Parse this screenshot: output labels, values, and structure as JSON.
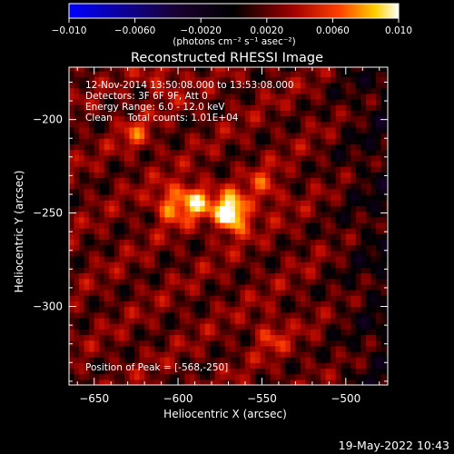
{
  "chart_data": {
    "type": "heatmap",
    "title": "Reconstructed RHESSI Image",
    "xlabel": "Heliocentric X (arcsec)",
    "ylabel": "Heliocentric Y (arcsec)",
    "xlim": [
      -665,
      -475
    ],
    "ylim": [
      -342,
      -172
    ],
    "x_ticks": [
      -650,
      -600,
      -550,
      -500
    ],
    "y_ticks": [
      -200,
      -250,
      -300
    ],
    "colorbar": {
      "min": -0.01,
      "max": 0.01,
      "ticks": [
        -0.01,
        -0.006,
        -0.002,
        0.002,
        0.006,
        0.01
      ],
      "tick_labels": [
        "−0.010",
        "−0.0060",
        "−0.0020",
        "0.0020",
        "0.0060",
        "0.010"
      ],
      "unit_label": "(photons cm⁻² s⁻¹ asec⁻²)",
      "colormap": [
        "#0000ff",
        "#000000",
        "#ff0000",
        "#ffff00",
        "#ffffff"
      ]
    },
    "info_lines": [
      "12-Nov-2014 13:50:08.000 to 13:53:08.000",
      "Detectors: 3F 6F 9F, Att 0",
      "Energy Range: 6.0 - 12.0 keV",
      "Clean     Total counts: 1.01E+04"
    ],
    "peak_label": "Position of Peak = [-568,-250]",
    "peak": {
      "x": -568,
      "y": -250,
      "value": 0.01
    },
    "sources": [
      {
        "x": -568,
        "y": -250,
        "value": 0.01
      },
      {
        "x": -590,
        "y": -243,
        "value": 0.006
      },
      {
        "x": -605,
        "y": -245,
        "value": 0.005
      },
      {
        "x": -548,
        "y": -237,
        "value": 0.0035
      },
      {
        "x": -545,
        "y": -315,
        "value": 0.003
      },
      {
        "x": -625,
        "y": -208,
        "value": 0.003
      },
      {
        "x": -610,
        "y": -178,
        "value": 0.0028
      }
    ],
    "background_level": 0.0022,
    "footer_date": "19-May-2022 10:43"
  }
}
